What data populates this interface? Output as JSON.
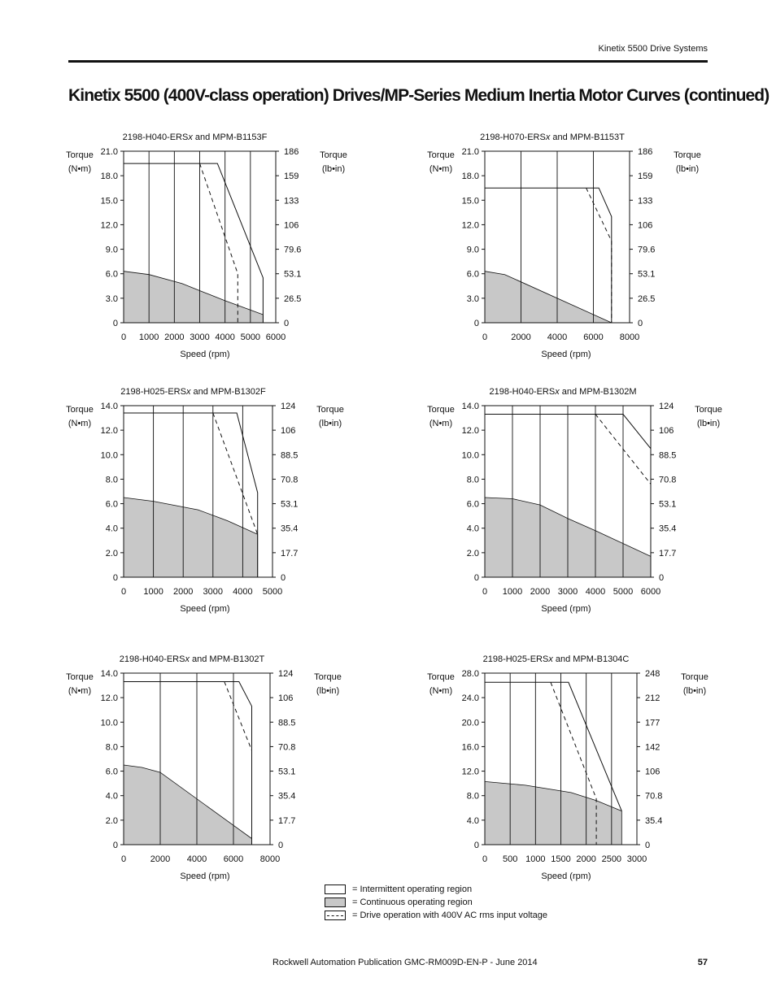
{
  "header": {
    "text": "Kinetix 5500 Drive Systems"
  },
  "page_title": "Kinetix 5500 (400V-class operation) Drives/MP-Series Medium Inertia Motor Curves (continued)",
  "axis_text": {
    "torque_label": "Torque",
    "nm_unit": "(N•m)",
    "lbin_unit": "(lb•in)",
    "speed_label": "Speed (rpm)"
  },
  "chart_data": [
    {
      "type": "area",
      "title_prefix": "2198-H040-ERS",
      "title_italic": "x",
      "title_suffix": " and MPM-B1153F",
      "xlabel": "Speed (rpm)",
      "ylabel": "Torque (N•m)",
      "y2label": "Torque (lb•in)",
      "xlim": [
        0,
        6000
      ],
      "ylim": [
        0,
        21
      ],
      "x_ticks": [
        "0",
        "1000",
        "2000",
        "3000",
        "4000",
        "5000",
        "6000"
      ],
      "y_ticks": [
        "0",
        "3.0",
        "6.0",
        "9.0",
        "12.0",
        "15.0",
        "18.0",
        "21.0"
      ],
      "y2_ticks": [
        "0",
        "26.5",
        "53.1",
        "79.6",
        "106",
        "133",
        "159",
        "186"
      ],
      "grid": "vertical",
      "series": [
        {
          "role": "continuous",
          "points": [
            [
              0,
              6.3
            ],
            [
              1000,
              5.9
            ],
            [
              2300,
              4.8
            ],
            [
              4000,
              2.7
            ],
            [
              5500,
              1.0
            ],
            [
              5500,
              0
            ],
            [
              0,
              0
            ]
          ]
        },
        {
          "role": "intermittent",
          "points": [
            [
              0,
              19.5
            ],
            [
              3700,
              19.5
            ],
            [
              5500,
              5.5
            ],
            [
              5500,
              0
            ]
          ]
        },
        {
          "role": "dashed_400v",
          "points": [
            [
              3000,
              19.5
            ],
            [
              4500,
              6.0
            ],
            [
              4500,
              0
            ]
          ]
        }
      ]
    },
    {
      "type": "area",
      "title_prefix": "2198-H070-ERS",
      "title_italic": "x",
      "title_suffix": " and MPM-B1153T",
      "xlabel": "Speed (rpm)",
      "ylabel": "Torque (N•m)",
      "y2label": "Torque (lb•in)",
      "xlim": [
        0,
        8000
      ],
      "ylim": [
        0,
        21
      ],
      "x_ticks": [
        "0",
        "2000",
        "4000",
        "6000",
        "8000"
      ],
      "y_ticks": [
        "0",
        "3.0",
        "6.0",
        "9.0",
        "12.0",
        "15.0",
        "18.0",
        "21.0"
      ],
      "y2_ticks": [
        "0",
        "26.5",
        "53.1",
        "79.6",
        "106",
        "133",
        "159",
        "186"
      ],
      "grid": "vertical",
      "series": [
        {
          "role": "continuous",
          "points": [
            [
              0,
              6.3
            ],
            [
              1100,
              5.9
            ],
            [
              7000,
              0
            ],
            [
              0,
              0
            ]
          ]
        },
        {
          "role": "intermittent",
          "points": [
            [
              0,
              16.5
            ],
            [
              6300,
              16.5
            ],
            [
              7000,
              13.0
            ],
            [
              7000,
              0
            ]
          ]
        },
        {
          "role": "dashed_400v",
          "points": [
            [
              5600,
              16.5
            ],
            [
              7000,
              10.0
            ],
            [
              7000,
              0
            ]
          ]
        }
      ]
    },
    {
      "type": "area",
      "title_prefix": "2198-H025-ERS",
      "title_italic": "x",
      "title_suffix": " and MPM-B1302F",
      "xlabel": "Speed (rpm)",
      "ylabel": "Torque (N•m)",
      "y2label": "Torque (lb•in)",
      "xlim": [
        0,
        5000
      ],
      "ylim": [
        0,
        14
      ],
      "x_ticks": [
        "0",
        "1000",
        "2000",
        "3000",
        "4000",
        "5000"
      ],
      "y_ticks": [
        "0",
        "2.0",
        "4.0",
        "6.0",
        "8.0",
        "10.0",
        "12.0",
        "14.0"
      ],
      "y2_ticks": [
        "0",
        "17.7",
        "35.4",
        "53.1",
        "70.8",
        "88.5",
        "106",
        "124"
      ],
      "grid": "vertical",
      "series": [
        {
          "role": "continuous",
          "points": [
            [
              0,
              6.5
            ],
            [
              1000,
              6.2
            ],
            [
              2500,
              5.5
            ],
            [
              3500,
              4.6
            ],
            [
              4500,
              3.5
            ],
            [
              4500,
              0
            ],
            [
              0,
              0
            ]
          ]
        },
        {
          "role": "intermittent",
          "points": [
            [
              0,
              13.4
            ],
            [
              3800,
              13.4
            ],
            [
              4500,
              6.9
            ],
            [
              4500,
              0
            ]
          ]
        },
        {
          "role": "dashed_400v",
          "points": [
            [
              3000,
              13.4
            ],
            [
              4500,
              3.5
            ]
          ]
        }
      ]
    },
    {
      "type": "area",
      "title_prefix": "2198-H040-ERS",
      "title_italic": "x",
      "title_suffix": " and MPM-B1302M",
      "xlabel": "Speed (rpm)",
      "ylabel": "Torque (N•m)",
      "y2label": "Torque (lb•in)",
      "xlim": [
        0,
        6000
      ],
      "ylim": [
        0,
        14
      ],
      "x_ticks": [
        "0",
        "1000",
        "2000",
        "3000",
        "4000",
        "5000",
        "6000"
      ],
      "y_ticks": [
        "0",
        "2.0",
        "4.0",
        "6.0",
        "8.0",
        "10.0",
        "12.0",
        "14.0"
      ],
      "y2_ticks": [
        "0",
        "17.7",
        "35.4",
        "53.1",
        "70.8",
        "88.5",
        "106",
        "124"
      ],
      "grid": "vertical",
      "series": [
        {
          "role": "continuous",
          "points": [
            [
              0,
              6.5
            ],
            [
              1000,
              6.4
            ],
            [
              2000,
              5.9
            ],
            [
              3000,
              4.8
            ],
            [
              4000,
              3.8
            ],
            [
              6000,
              1.7
            ],
            [
              6000,
              0
            ],
            [
              0,
              0
            ]
          ]
        },
        {
          "role": "intermittent",
          "points": [
            [
              0,
              13.3
            ],
            [
              5000,
              13.3
            ],
            [
              6000,
              10.5
            ],
            [
              6000,
              0
            ]
          ]
        },
        {
          "role": "dashed_400v",
          "points": [
            [
              4000,
              13.3
            ],
            [
              6000,
              7.6
            ]
          ]
        }
      ]
    },
    {
      "type": "area",
      "title_prefix": "2198-H040-ERS",
      "title_italic": "x",
      "title_suffix": " and MPM-B1302T",
      "xlabel": "Speed (rpm)",
      "ylabel": "Torque (N•m)",
      "y2label": "Torque (lb•in)",
      "xlim": [
        0,
        8000
      ],
      "ylim": [
        0,
        14
      ],
      "x_ticks": [
        "0",
        "2000",
        "4000",
        "6000",
        "8000"
      ],
      "y_ticks": [
        "0",
        "2.0",
        "4.0",
        "6.0",
        "8.0",
        "10.0",
        "12.0",
        "14.0"
      ],
      "y2_ticks": [
        "0",
        "17.7",
        "35.4",
        "53.1",
        "70.8",
        "88.5",
        "106",
        "124"
      ],
      "grid": "vertical",
      "series": [
        {
          "role": "continuous",
          "points": [
            [
              0,
              6.5
            ],
            [
              1000,
              6.3
            ],
            [
              2000,
              5.9
            ],
            [
              7000,
              0.5
            ],
            [
              7000,
              0
            ],
            [
              0,
              0
            ]
          ]
        },
        {
          "role": "intermittent",
          "points": [
            [
              0,
              13.3
            ],
            [
              6300,
              13.3
            ],
            [
              7000,
              11.3
            ],
            [
              7000,
              0
            ]
          ]
        },
        {
          "role": "dashed_400v",
          "points": [
            [
              5500,
              13.3
            ],
            [
              7000,
              7.7
            ]
          ]
        }
      ]
    },
    {
      "type": "area",
      "title_prefix": "2198-H025-ERS",
      "title_italic": "x",
      "title_suffix": " and MPM-B1304C",
      "xlabel": "Speed (rpm)",
      "ylabel": "Torque (N•m)",
      "y2label": "Torque (lb•in)",
      "xlim": [
        0,
        3000
      ],
      "ylim": [
        0,
        28
      ],
      "x_ticks": [
        "0",
        "500",
        "1000",
        "1500",
        "2000",
        "2500",
        "3000"
      ],
      "y_ticks": [
        "0",
        "4.0",
        "8.0",
        "12.0",
        "16.0",
        "20.0",
        "24.0",
        "28.0"
      ],
      "y2_ticks": [
        "0",
        "35.4",
        "70.8",
        "106",
        "142",
        "177",
        "212",
        "248"
      ],
      "grid": "vertical",
      "series": [
        {
          "role": "continuous",
          "points": [
            [
              0,
              10.3
            ],
            [
              800,
              9.7
            ],
            [
              1700,
              8.5
            ],
            [
              2200,
              7.2
            ],
            [
              2700,
              5.5
            ],
            [
              2700,
              0
            ],
            [
              0,
              0
            ]
          ]
        },
        {
          "role": "intermittent",
          "points": [
            [
              0,
              26.5
            ],
            [
              1650,
              26.5
            ],
            [
              2700,
              5.5
            ]
          ]
        },
        {
          "role": "dashed_400v",
          "points": [
            [
              1300,
              26.5
            ],
            [
              2200,
              7.5
            ],
            [
              2200,
              0
            ]
          ]
        }
      ]
    }
  ],
  "legend": [
    {
      "swatch": "empty",
      "label": "= Intermittent operating region"
    },
    {
      "swatch": "gray",
      "label": "= Continuous operating region"
    },
    {
      "swatch": "dashed",
      "label": "= Drive operation with 400V AC rms input voltage"
    }
  ],
  "colors": {
    "continuous_fill": "#c8c8c8",
    "line": "#111111"
  },
  "footer": {
    "publication": "Rockwell Automation Publication GMC-RM009D-EN-P - June 2014",
    "page_number": "57"
  }
}
